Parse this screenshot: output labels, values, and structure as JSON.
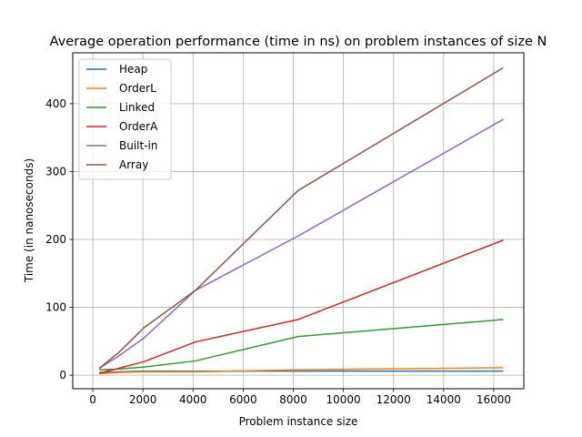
{
  "chart_data": {
    "type": "line",
    "title": "Average operation performance (time in ns) on problem instances of size N",
    "xlabel": "Problem instance size",
    "ylabel": "Time (in nanoseconds)",
    "xlim": [
      -800,
      17200
    ],
    "ylim": [
      -20,
      475
    ],
    "xticks": [
      0,
      2000,
      4000,
      6000,
      8000,
      10000,
      12000,
      14000,
      16000
    ],
    "yticks": [
      0,
      100,
      200,
      300,
      400
    ],
    "grid": true,
    "legend_position": "top-left",
    "x": [
      256,
      1024,
      2048,
      4096,
      8192,
      16384
    ],
    "series": [
      {
        "name": "Heap",
        "color": "#1f77b4",
        "values": [
          4,
          5,
          6,
          6,
          6,
          6
        ]
      },
      {
        "name": "OrderL",
        "color": "#ff7f0e",
        "values": [
          2,
          4,
          5,
          5,
          8,
          11
        ]
      },
      {
        "name": "Linked",
        "color": "#2ca02c",
        "values": [
          8,
          9,
          12,
          21,
          57,
          82
        ]
      },
      {
        "name": "OrderA",
        "color": "#d62728",
        "values": [
          3,
          10,
          20,
          49,
          82,
          199
        ]
      },
      {
        "name": "Built-in",
        "color": "#9467bd",
        "values": [
          10,
          28,
          55,
          125,
          205,
          377
        ]
      },
      {
        "name": "Array",
        "color": "#8c564b",
        "values": [
          10,
          33,
          70,
          125,
          272,
          453
        ]
      }
    ]
  }
}
